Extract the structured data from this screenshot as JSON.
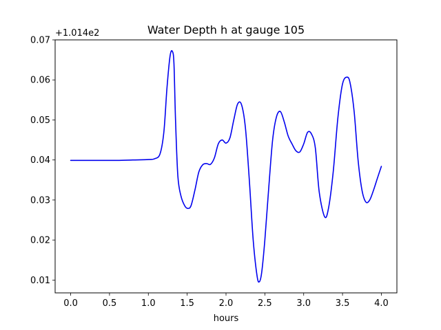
{
  "chart_data": {
    "type": "line",
    "title": "Water Depth h at gauge 105",
    "xlabel": "hours",
    "ylabel": "",
    "offset_label": "+1.014e2",
    "xlim": [
      -0.2,
      4.2
    ],
    "ylim": [
      0.0068,
      0.07
    ],
    "x_ticks": [
      0.0,
      0.5,
      1.0,
      1.5,
      2.0,
      2.5,
      3.0,
      3.5,
      4.0
    ],
    "x_tick_labels": [
      "0.0",
      "0.5",
      "1.0",
      "1.5",
      "2.0",
      "2.5",
      "3.0",
      "3.5",
      "4.0"
    ],
    "y_ticks": [
      0.01,
      0.02,
      0.03,
      0.04,
      0.05,
      0.06,
      0.07
    ],
    "y_tick_labels": [
      "0.01",
      "0.02",
      "0.03",
      "0.04",
      "0.05",
      "0.06",
      "0.07"
    ],
    "grid": false,
    "line_color": "#0000ee",
    "series": [
      {
        "x": [
          0.0,
          0.2,
          0.4,
          0.6,
          0.8,
          1.0,
          1.08,
          1.15,
          1.2,
          1.24,
          1.28,
          1.31,
          1.33,
          1.35,
          1.38,
          1.42,
          1.47,
          1.51,
          1.55,
          1.6,
          1.65,
          1.7,
          1.75,
          1.8,
          1.85,
          1.9,
          1.95,
          2.0,
          2.05,
          2.1,
          2.15,
          2.2,
          2.25,
          2.3,
          2.35,
          2.4,
          2.43,
          2.46,
          2.5,
          2.55,
          2.6,
          2.65,
          2.7,
          2.75,
          2.8,
          2.85,
          2.9,
          2.95,
          3.0,
          3.05,
          3.1,
          3.15,
          3.2,
          3.27,
          3.32,
          3.38,
          3.44,
          3.5,
          3.56,
          3.6,
          3.65,
          3.7,
          3.75,
          3.8,
          3.85,
          3.9,
          3.95,
          4.0
        ],
        "y": [
          0.0399,
          0.0399,
          0.0399,
          0.0399,
          0.04,
          0.0401,
          0.0403,
          0.0415,
          0.047,
          0.058,
          0.066,
          0.0671,
          0.064,
          0.05,
          0.036,
          0.031,
          0.0285,
          0.0279,
          0.0286,
          0.0325,
          0.037,
          0.0388,
          0.0391,
          0.0389,
          0.0405,
          0.044,
          0.045,
          0.0442,
          0.0455,
          0.05,
          0.054,
          0.0538,
          0.048,
          0.035,
          0.02,
          0.011,
          0.0096,
          0.012,
          0.02,
          0.033,
          0.045,
          0.0508,
          0.0521,
          0.0495,
          0.046,
          0.044,
          0.0423,
          0.042,
          0.044,
          0.0469,
          0.0465,
          0.043,
          0.032,
          0.0258,
          0.028,
          0.037,
          0.0505,
          0.059,
          0.0607,
          0.059,
          0.052,
          0.04,
          0.0325,
          0.0295,
          0.03,
          0.0325,
          0.0355,
          0.0384
        ]
      }
    ]
  }
}
